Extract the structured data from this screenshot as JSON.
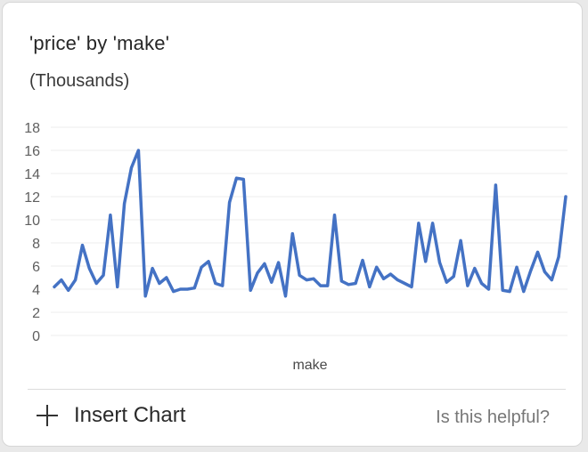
{
  "card": {
    "title": "'price' by 'make'",
    "subtitle": "(Thousands)",
    "insert_chart_label": "Insert Chart",
    "insert_icon": "plus-icon",
    "helpful_label": "Is this helpful?"
  },
  "colors": {
    "line": "#4472c4",
    "grid": "#ececec",
    "divider": "#dcdcdc"
  },
  "chart_data": {
    "type": "line",
    "title": "'price' by 'make'",
    "subtitle": "(Thousands)",
    "xlabel": "make",
    "ylabel": "",
    "ylim": [
      0,
      18
    ],
    "yticks": [
      0,
      2,
      4,
      6,
      8,
      10,
      12,
      14,
      16,
      18
    ],
    "grid": true,
    "legend": "none",
    "series": [
      {
        "values": [
          4.2,
          4.8,
          3.9,
          4.8,
          7.8,
          5.8,
          4.5,
          5.2,
          10.4,
          4.2,
          11.4,
          14.5,
          16.0,
          3.4,
          5.8,
          4.5,
          5.0,
          3.8,
          4.0,
          4.0,
          4.1,
          5.9,
          6.4,
          4.5,
          4.3,
          11.5,
          13.6,
          13.5,
          3.9,
          5.4,
          6.2,
          4.6,
          6.3,
          3.4,
          8.8,
          5.2,
          4.8,
          4.9,
          4.3,
          4.3,
          10.4,
          4.7,
          4.4,
          4.5,
          6.5,
          4.2,
          5.9,
          4.9,
          5.3,
          4.8,
          4.5,
          4.2,
          9.7,
          6.4,
          9.7,
          6.3,
          4.6,
          5.1,
          8.2,
          4.3,
          5.8,
          4.5,
          4.0,
          13.0,
          3.9,
          3.8,
          5.9,
          3.8,
          5.6,
          7.2,
          5.5,
          4.8,
          6.8,
          12.0
        ]
      }
    ]
  }
}
